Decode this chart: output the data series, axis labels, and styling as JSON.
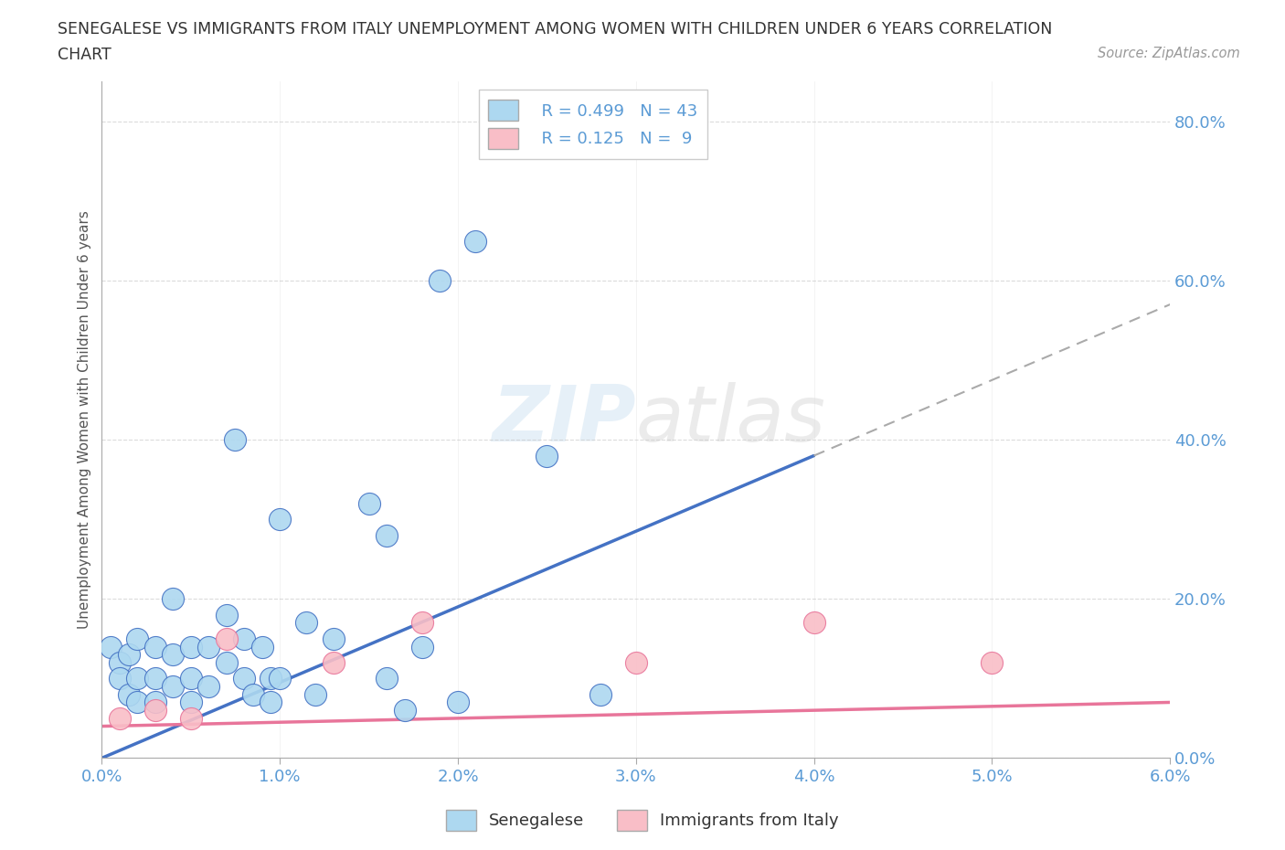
{
  "title_line1": "SENEGALESE VS IMMIGRANTS FROM ITALY UNEMPLOYMENT AMONG WOMEN WITH CHILDREN UNDER 6 YEARS CORRELATION",
  "title_line2": "CHART",
  "source": "Source: ZipAtlas.com",
  "ylabel": "Unemployment Among Women with Children Under 6 years",
  "xlim": [
    0.0,
    0.06
  ],
  "ylim": [
    0.0,
    0.85
  ],
  "xticks": [
    0.0,
    0.01,
    0.02,
    0.03,
    0.04,
    0.05,
    0.06
  ],
  "xticklabels": [
    "0.0%",
    "1.0%",
    "2.0%",
    "3.0%",
    "4.0%",
    "5.0%",
    "6.0%"
  ],
  "yticks": [
    0.0,
    0.2,
    0.4,
    0.6,
    0.8
  ],
  "yticklabels": [
    "0.0%",
    "20.0%",
    "40.0%",
    "60.0%",
    "80.0%"
  ],
  "blue_color": "#ADD8F0",
  "pink_color": "#F9BEC7",
  "line_blue": "#4472C4",
  "line_pink": "#E8759A",
  "watermark_color": "#C8DFF0",
  "senegalese_x": [
    0.0005,
    0.001,
    0.001,
    0.0015,
    0.0015,
    0.002,
    0.002,
    0.002,
    0.003,
    0.003,
    0.003,
    0.004,
    0.004,
    0.004,
    0.005,
    0.005,
    0.005,
    0.006,
    0.006,
    0.007,
    0.007,
    0.0075,
    0.008,
    0.008,
    0.0085,
    0.009,
    0.0095,
    0.0095,
    0.01,
    0.01,
    0.0115,
    0.012,
    0.013,
    0.015,
    0.016,
    0.017,
    0.018,
    0.019,
    0.021,
    0.025,
    0.016,
    0.02,
    0.028
  ],
  "senegalese_y": [
    0.14,
    0.12,
    0.1,
    0.13,
    0.08,
    0.15,
    0.1,
    0.07,
    0.14,
    0.1,
    0.07,
    0.2,
    0.13,
    0.09,
    0.14,
    0.1,
    0.07,
    0.14,
    0.09,
    0.18,
    0.12,
    0.4,
    0.15,
    0.1,
    0.08,
    0.14,
    0.1,
    0.07,
    0.3,
    0.1,
    0.17,
    0.08,
    0.15,
    0.32,
    0.1,
    0.06,
    0.14,
    0.6,
    0.65,
    0.38,
    0.28,
    0.07,
    0.08
  ],
  "italy_x": [
    0.001,
    0.003,
    0.005,
    0.007,
    0.013,
    0.018,
    0.03,
    0.04,
    0.05
  ],
  "italy_y": [
    0.05,
    0.06,
    0.05,
    0.15,
    0.12,
    0.17,
    0.12,
    0.17,
    0.12
  ],
  "blue_line_x": [
    0.0,
    0.04
  ],
  "blue_line_y": [
    0.0,
    0.38
  ],
  "pink_line_x": [
    0.0,
    0.06
  ],
  "pink_line_y": [
    0.04,
    0.07
  ]
}
